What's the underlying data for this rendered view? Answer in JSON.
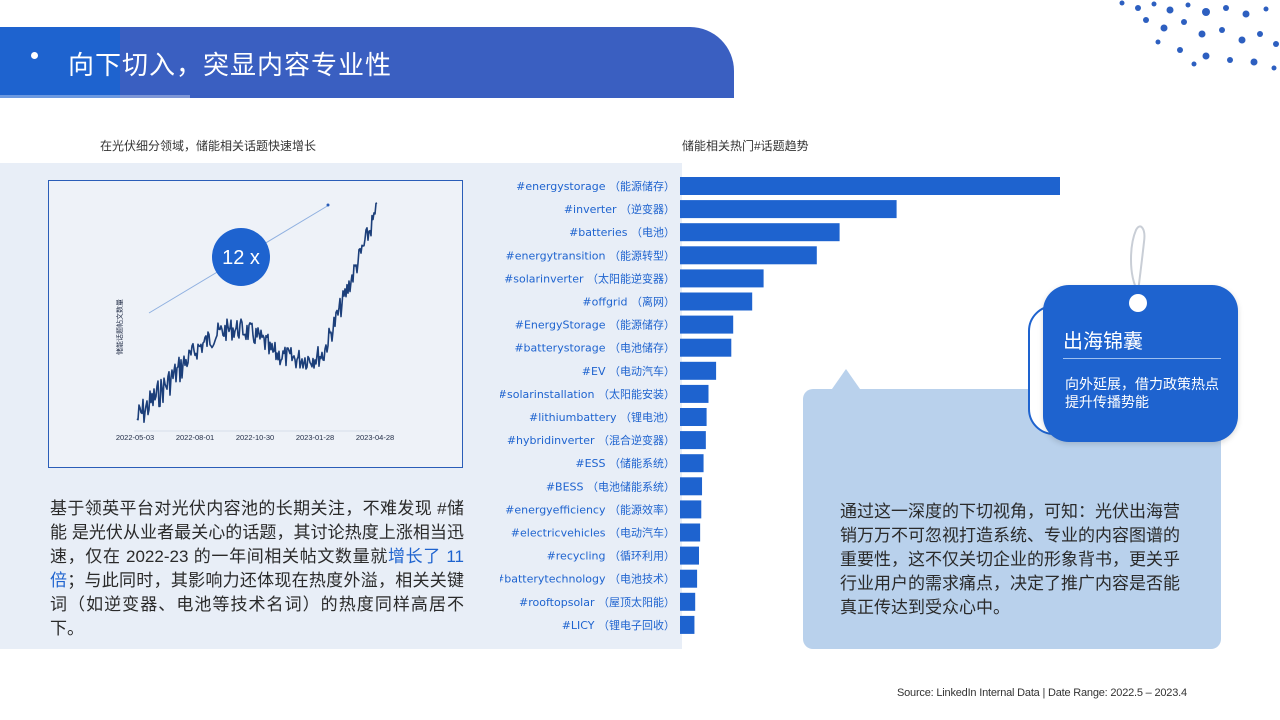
{
  "header": {
    "title": "向下切入，突显内容专业性"
  },
  "left": {
    "section_label": "在光伏细分领域，储能相关话题快速增长",
    "chart": {
      "multiplier": "12 x",
      "ylabel": "储能话题帖文数量",
      "x_ticks": [
        "2022-05-03",
        "2022-08-01",
        "2022-10-30",
        "2023-01-28",
        "2023-04-28"
      ]
    },
    "paragraph": {
      "part1": "基于领英平台对光伏内容池的长期关注，不难发现 #储能  是光伏从业者最关心的话题，其讨论热度上涨相当迅速，仅在 2022-23 的一年间相关帖文数量就",
      "highlight": "增长了 11 倍",
      "part2": "；与此同时，其影响力还体现在热度外溢，相关关键词（如逆变器、电池等技术名词）的热度同样高居不下。"
    }
  },
  "right": {
    "section_label": "储能相关热门#话题趋势",
    "bar_color": "#1e63cf"
  },
  "chart_data": {
    "type": "bar",
    "orientation": "horizontal",
    "categories": [
      "#energystorage （能源储存）",
      "#inverter （逆变器）",
      "#batteries （电池）",
      "#energytransition （能源转型）",
      "#solarinverter （太阳能逆变器）",
      "#offgrid （离网）",
      "#EnergyStorage （能源储存）",
      "#batterystorage （电池储存）",
      "#EV （电动汽车）",
      "#solarinstallation （太阳能安装）",
      "#lithiumbattery （锂电池）",
      "#hybridinverter （混合逆变器）",
      "#ESS （储能系统）",
      "#BESS （电池储能系统）",
      "#energyefficiency （能源效率）",
      "#electricvehicles （电动汽车）",
      "#recycling （循环利用）",
      "#batterytechnology （电池技术）",
      "#rooftopsolar （屋顶太阳能）",
      "#LICY （锂电子回收）"
    ],
    "values": [
      100,
      57,
      42,
      36,
      22,
      19,
      14,
      13.5,
      9.5,
      7.5,
      7,
      6.8,
      6.2,
      5.8,
      5.6,
      5.3,
      5,
      4.5,
      4,
      3.8
    ]
  },
  "callout": {
    "text": "通过这一深度的下切视角，可知：光伏出海营销万万不可忽视打造系统、专业的内容图谱的重要性，这不仅关切企业的形象背书，更关乎行业用户的需求痛点，决定了推广内容是否能真正传达到受众心中。"
  },
  "tag": {
    "title": "出海锦囊",
    "subtitle": "向外延展，借力政策热点提升传播势能"
  },
  "footer": {
    "source": "Source: LinkedIn Internal Data | Date Range: 2022.5 – 2023.4"
  }
}
